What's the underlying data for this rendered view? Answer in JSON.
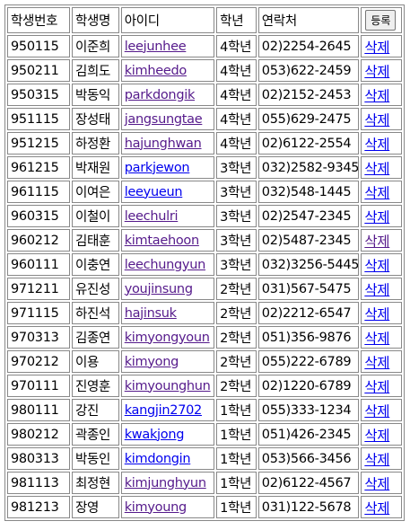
{
  "headers": {
    "id": "학생번호",
    "name": "학생명",
    "userid": "아이디",
    "grade": "학년",
    "phone": "연락처",
    "register_label": "등록"
  },
  "delete_label": "삭제",
  "students": [
    {
      "id": "950115",
      "name": "이준희",
      "userid": "leejunhee",
      "grade": "4학년",
      "phone": "02)2254-2645",
      "visited": true
    },
    {
      "id": "950211",
      "name": "김희도",
      "userid": "kimheedo",
      "grade": "4학년",
      "phone": "053)622-2459",
      "visited": true
    },
    {
      "id": "950315",
      "name": "박동익",
      "userid": "parkdongik",
      "grade": "4학년",
      "phone": "02)2152-2453",
      "visited": true
    },
    {
      "id": "951115",
      "name": "장성태",
      "userid": "jangsungtae",
      "grade": "4학년",
      "phone": "055)629-2475",
      "visited": true
    },
    {
      "id": "951215",
      "name": "하정환",
      "userid": "hajunghwan",
      "grade": "4학년",
      "phone": "02)6122-2554",
      "visited": true
    },
    {
      "id": "961215",
      "name": "박재원",
      "userid": "parkjewon",
      "grade": "3학년",
      "phone": "032)2582-9345",
      "visited": false
    },
    {
      "id": "961115",
      "name": "이여은",
      "userid": "leeyueun",
      "grade": "3학년",
      "phone": "032)548-1445",
      "visited": false
    },
    {
      "id": "960315",
      "name": "이철이",
      "userid": "leechulri",
      "grade": "3학년",
      "phone": "02)2547-2345",
      "visited": true
    },
    {
      "id": "960212",
      "name": "김태훈",
      "userid": "kimtaehoon",
      "grade": "3학년",
      "phone": "02)5487-2345",
      "visited": true
    },
    {
      "id": "960111",
      "name": "이충연",
      "userid": "leechungyun",
      "grade": "3학년",
      "phone": "032)3256-5445",
      "visited": true
    },
    {
      "id": "971211",
      "name": "유진성",
      "userid": "youjinsung",
      "grade": "2학년",
      "phone": "031)567-5475",
      "visited": true
    },
    {
      "id": "971115",
      "name": "하진석",
      "userid": "hajinsuk",
      "grade": "2학년",
      "phone": "02)2212-6547",
      "visited": true
    },
    {
      "id": "970313",
      "name": "김종연",
      "userid": "kimyongyoun",
      "grade": "2학년",
      "phone": "051)356-9876",
      "visited": true
    },
    {
      "id": "970212",
      "name": "이용",
      "userid": "kimyong",
      "grade": "2학년",
      "phone": "055)222-6789",
      "visited": true
    },
    {
      "id": "970111",
      "name": "진영훈",
      "userid": "kimyounghun",
      "grade": "2학년",
      "phone": "02)1220-6789",
      "visited": true
    },
    {
      "id": "980111",
      "name": "강진",
      "userid": "kangjin2702",
      "grade": "1학년",
      "phone": "055)333-1234",
      "visited": false
    },
    {
      "id": "980212",
      "name": "곽종인",
      "userid": "kwakjong",
      "grade": "1학년",
      "phone": "051)426-2345",
      "visited": false
    },
    {
      "id": "980313",
      "name": "박동인",
      "userid": "kimdongin",
      "grade": "1학년",
      "phone": "053)566-3456",
      "visited": false
    },
    {
      "id": "981113",
      "name": "최정현",
      "userid": "kimjunghyun",
      "grade": "1학년",
      "phone": "02)6122-4567",
      "visited": true
    },
    {
      "id": "981213",
      "name": "장영",
      "userid": "kimyoung",
      "grade": "1학년",
      "phone": "031)122-5678",
      "visited": true
    }
  ]
}
